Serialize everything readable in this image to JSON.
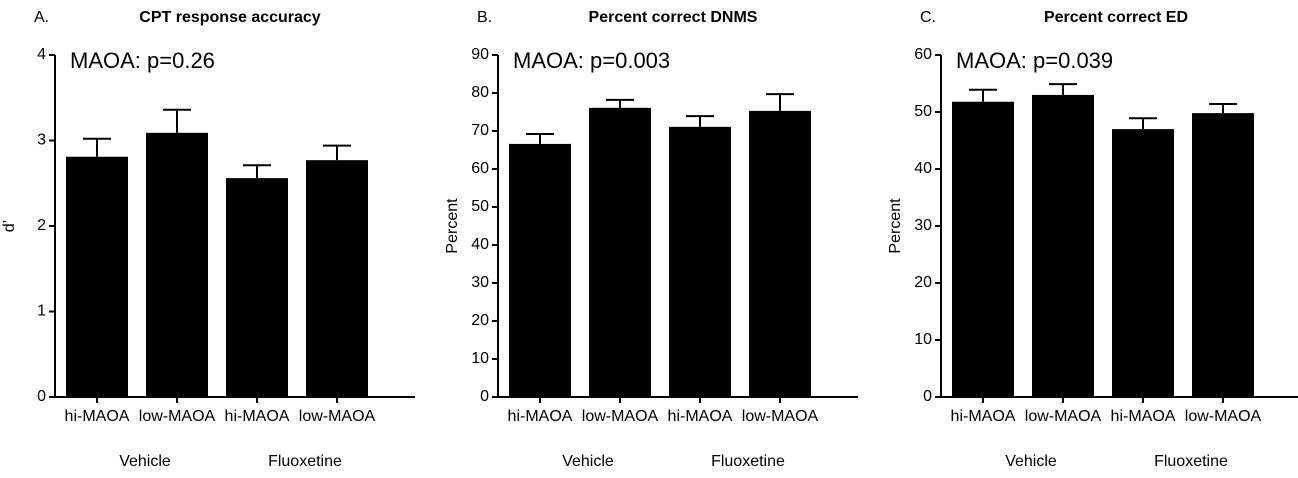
{
  "chart_data": [
    {
      "type": "bar",
      "panel_label": "A.",
      "title": "CPT response accuracy",
      "annotation": "MAOA: p=0.26",
      "ylabel": "d’",
      "categories": [
        "hi-MAOA",
        "low-MAOA",
        "hi-MAOA",
        "low-MAOA"
      ],
      "group_labels": [
        "Vehicle",
        "Fluoxetine"
      ],
      "values": [
        2.81,
        3.09,
        2.56,
        2.77
      ],
      "errors": [
        0.21,
        0.27,
        0.15,
        0.17
      ],
      "color": "#000000",
      "ylim": [
        0,
        4
      ],
      "yticks": [
        0,
        1,
        2,
        3,
        4
      ]
    },
    {
      "type": "bar",
      "panel_label": "B.",
      "title": "Percent correct  DNMS",
      "annotation": "MAOA: p=0.003",
      "ylabel": "Percent",
      "categories": [
        "hi-MAOA",
        "low-MAOA",
        "hi-MAOA",
        "low-MAOA"
      ],
      "group_labels": [
        "Vehicle",
        "Fluoxetine"
      ],
      "values": [
        66.6,
        76.1,
        71.1,
        75.3
      ],
      "errors": [
        2.6,
        2.1,
        2.8,
        4.4
      ],
      "color": "#000000",
      "ylim": [
        0,
        90
      ],
      "yticks": [
        0,
        10,
        20,
        30,
        40,
        50,
        60,
        70,
        80,
        90
      ]
    },
    {
      "type": "bar",
      "panel_label": "C.",
      "title": "Percent correct ED",
      "annotation": "MAOA: p=0.039",
      "ylabel": "Percent",
      "categories": [
        "hi-MAOA",
        "low-MAOA",
        "hi-MAOA",
        "low-MAOA"
      ],
      "group_labels": [
        "Vehicle",
        "Fluoxetine"
      ],
      "values": [
        51.8,
        53.0,
        47.0,
        49.8
      ],
      "errors": [
        2.1,
        1.9,
        1.9,
        1.6
      ],
      "color": "#000000",
      "ylim": [
        0,
        60
      ],
      "yticks": [
        0,
        10,
        20,
        30,
        40,
        50,
        60
      ]
    }
  ]
}
